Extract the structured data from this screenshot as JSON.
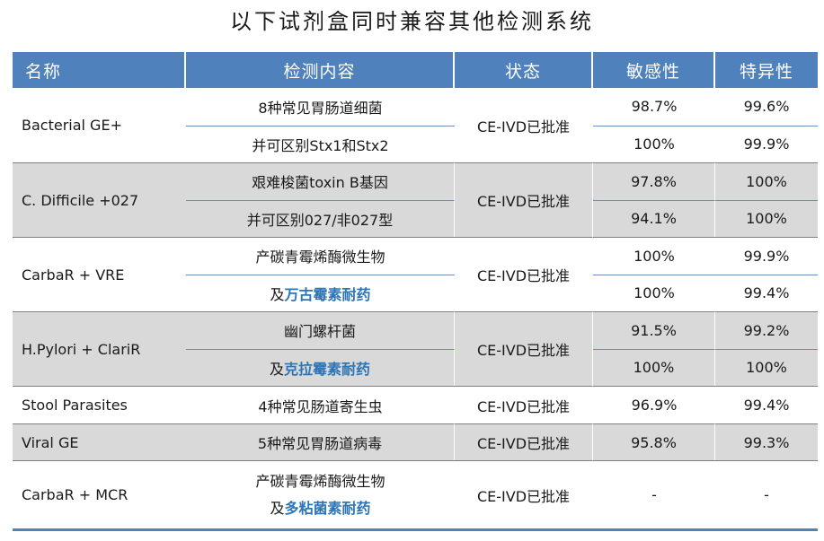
{
  "title": "以下试剂盒同时兼容其他检测系统",
  "headers": {
    "name": "名称",
    "content": "检测内容",
    "status": "状态",
    "sensitivity": "敏感性",
    "specificity": "特异性"
  },
  "rows": [
    {
      "name": "Bacterial GE+",
      "status": "CE-IVD已批准",
      "shade": "white",
      "subrows": [
        {
          "content": "8种常见胃肠道细菌",
          "content_prefix": "",
          "content_highlight": "",
          "sensitivity": "98.7%",
          "specificity": "99.6%"
        },
        {
          "content": "并可区别Stx1和Stx2",
          "content_prefix": "",
          "content_highlight": "",
          "sensitivity": "100%",
          "specificity": "99.9%"
        }
      ]
    },
    {
      "name": "C. Difficile +027",
      "status": "CE-IVD已批准",
      "shade": "grey",
      "subrows": [
        {
          "content": "艰难梭菌toxin B基因",
          "content_prefix": "",
          "content_highlight": "",
          "sensitivity": "97.8%",
          "specificity": "100%"
        },
        {
          "content": "并可区别027/非027型",
          "content_prefix": "",
          "content_highlight": "",
          "sensitivity": "94.1%",
          "specificity": "100%"
        }
      ]
    },
    {
      "name": "CarbaR + VRE",
      "status": "CE-IVD已批准",
      "shade": "white",
      "subrows": [
        {
          "content": "产碳青霉烯酶微生物",
          "content_prefix": "",
          "content_highlight": "",
          "sensitivity": "100%",
          "specificity": "99.9%"
        },
        {
          "content": "",
          "content_prefix": "及",
          "content_highlight": "万古霉素耐药",
          "sensitivity": "100%",
          "specificity": "99.4%"
        }
      ]
    },
    {
      "name": "H.Pylori + ClariR",
      "status": "CE-IVD已批准",
      "shade": "grey",
      "subrows": [
        {
          "content": "幽门螺杆菌",
          "content_prefix": "",
          "content_highlight": "",
          "sensitivity": "91.5%",
          "specificity": "99.2%"
        },
        {
          "content": "",
          "content_prefix": "及",
          "content_highlight": "克拉霉素耐药",
          "sensitivity": "100%",
          "specificity": "100%"
        }
      ]
    },
    {
      "name": "Stool Parasites",
      "status": "CE-IVD已批准",
      "shade": "white",
      "content": "4种常见肠道寄生虫",
      "sensitivity": "96.9%",
      "specificity": "99.4%"
    },
    {
      "name": "Viral GE",
      "status": "CE-IVD已批准",
      "shade": "grey",
      "content": "5种常见胃肠道病毒",
      "sensitivity": "95.8%",
      "specificity": "99.3%"
    },
    {
      "name": "CarbaR + MCR",
      "status": "CE-IVD已批准",
      "shade": "white",
      "content_line1": "产碳青霉烯酶微生物",
      "content_line2_prefix": "及",
      "content_line2_highlight": "多粘菌素耐药",
      "sensitivity": "-",
      "specificity": "-"
    }
  ],
  "colors": {
    "header_bg": "#4f81bd",
    "highlight_text": "#2e75b6",
    "shade_grey": "#d9d9d9"
  }
}
